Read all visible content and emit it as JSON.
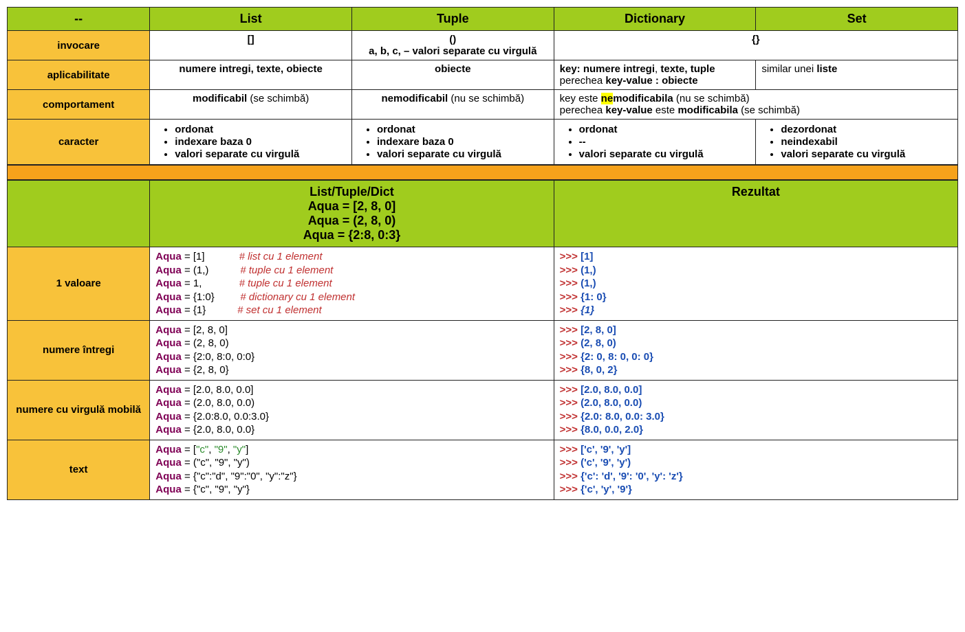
{
  "colors": {
    "header_bg": "#a0cc1e",
    "label_bg": "#f8c23a",
    "spacer_bg": "#f6a21b",
    "highlight_bg": "#ffff00",
    "aqua": "#7f0055",
    "comment": "#c03030",
    "prompt": "#c03030",
    "output": "#1a4db3",
    "string": "#2a8a2a",
    "border": "#222222",
    "text": "#000000"
  },
  "top_headers": [
    "--",
    "List",
    "Tuple",
    "Dictionary",
    "Set"
  ],
  "rows": {
    "invocare": {
      "label": "invocare",
      "list": "[]",
      "tuple_l1": "()",
      "tuple_l2": "a, b, c,  – valori separate cu virgulă",
      "dict_set": "{}"
    },
    "aplicabilitate": {
      "label": "aplicabilitate",
      "dict_l1_b1": "key: numere intregi",
      "dict_l1_mid": ", ",
      "dict_l1_b2": "texte, tuple",
      "dict_l2_pre": "perechea ",
      "dict_l2_b": "key-value : obiecte",
      "set_pre": "similar unei ",
      "set_b": "liste"
    },
    "comportament": {
      "label": "comportament",
      "ds_l1_pre": "key este ",
      "ds_l1_hl": "ne",
      "ds_l1_b": "modificabila",
      "ds_l1_post": " (nu se schimbă)",
      "ds_l2_pre": "perechea ",
      "ds_l2_b1": "key-value",
      "ds_l2_mid": " este ",
      "ds_l2_b2": "modificabila",
      "ds_l2_post": " (se schimbă)"
    },
    "caracter": {
      "label": "caracter",
      "list": [
        "ordonat",
        "indexare baza 0",
        "valori separate cu virgulă"
      ],
      "tuple": [
        "ordonat",
        "indexare baza 0",
        "valori separate cu virgulă"
      ],
      "dict": [
        "ordonat",
        "--",
        "valori separate cu virgulă"
      ],
      "set": [
        "dezordonat",
        "neindexabil",
        "valori separate cu virgulă"
      ]
    }
  },
  "mid_header": {
    "left_l1": "List/Tuple/Dict",
    "left_l2": "Aqua = [2, 8, 0]",
    "left_l3": "Aqua = (2, 8, 0)",
    "left_l4": "Aqua = {2:8, 0:3}",
    "right": "Rezultat"
  },
  "examples": {
    "one": {
      "label": "1 valoare",
      "code": [
        {
          "v": " = [1]",
          "pad": "            ",
          "c": "# list cu 1 element"
        },
        {
          "v": " = (1,)",
          "pad": "           ",
          "c": "# tuple cu 1 element"
        },
        {
          "v": " = 1,",
          "pad": "             ",
          "c": "# tuple cu 1 element"
        },
        {
          "v": " = {1:0}",
          "pad": "         ",
          "c": "# dictionary cu 1 element"
        },
        {
          "v": " = {1}",
          "pad": "           ",
          "c": "# set cu 1 element"
        }
      ],
      "out": [
        "[1]",
        "(1,)",
        "(1,)",
        "{1: 0}"
      ],
      "out_italic": "{1}"
    },
    "ints": {
      "label": "numere întregi",
      "code": [
        " = [2, 8, 0]",
        " = (2, 8, 0)",
        " = {2:0, 8:0, 0:0}",
        " = {2, 8, 0}"
      ],
      "out": [
        "[2, 8, 0]",
        "(2, 8, 0)",
        "{2: 0, 8: 0, 0: 0}",
        "{8, 0, 2}"
      ]
    },
    "floats": {
      "label": "numere cu virgulă mobilă",
      "code": [
        " = [2.0, 8.0, 0.0]",
        " = (2.0, 8.0, 0.0)",
        " = {2.0:8.0, 0.0:3.0}",
        " = {2.0, 8.0, 0.0}"
      ],
      "out": [
        "[2.0, 8.0, 0.0]",
        "(2.0, 8.0, 0.0)",
        "{2.0: 8.0, 0.0: 3.0}",
        "{8.0, 0.0, 2.0}"
      ]
    },
    "text": {
      "label": "text",
      "code_strings": [
        "\"c\"",
        "\"9\"",
        "\"y\""
      ],
      "dict_keys": [
        "\"c\"",
        "\"9\"",
        "\"y\""
      ],
      "dict_vals": [
        "\"d\"",
        "\"0\"",
        "\"z\""
      ],
      "out": [
        "['c', '9', 'y']",
        "('c', '9', 'y')",
        "{'c': 'd', '9': '0', 'y': 'z'}",
        "{'c', 'y', '9'}"
      ]
    }
  },
  "strings": {
    "aqua": "Aqua",
    "prompt": ">>> ",
    "aplic_list_b1": "numere intregi",
    "aplic_list_mid": ", ",
    "aplic_list_b2": "texte",
    "aplic_list_mid2": ", ",
    "aplic_list_b3": "obiecte",
    "aplic_tuple": "obiecte",
    "comp_list_b": "modificabil",
    "comp_list_post": " (se schimbă)",
    "comp_tuple_b": "nemodificabil",
    "comp_tuple_post": " (nu se schimbă)"
  }
}
